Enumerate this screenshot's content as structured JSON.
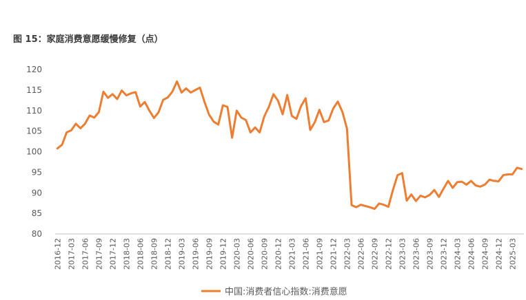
{
  "figure_title": "图 15：家庭消费意愿缓慢修复（点）",
  "chart_data": {
    "type": "line",
    "title": "",
    "xlabel": "",
    "ylabel": "",
    "ylim": [
      80,
      120
    ],
    "yticks": [
      80,
      85,
      90,
      95,
      100,
      105,
      110,
      115,
      120
    ],
    "grid": false,
    "legend_position": "bottom",
    "x_tick_labels": [
      "2016-12",
      "2017-03",
      "2017-06",
      "2017-09",
      "2017-12",
      "2018-03",
      "2018-06",
      "2018-09",
      "2018-12",
      "2019-03",
      "2019-06",
      "2019-09",
      "2019-12",
      "2020-03",
      "2020-06",
      "2020-09",
      "2020-12",
      "2021-03",
      "2021-06",
      "2021-09",
      "2021-12",
      "2022-03",
      "2022-06",
      "2022-09",
      "2022-12",
      "2023-03",
      "2023-06",
      "2023-09",
      "2023-12",
      "2024-03",
      "2024-06",
      "2024-09",
      "2024-12",
      "2025-03"
    ],
    "series": [
      {
        "name": "中国:消费者信心指数:消费意愿",
        "color": "#ED7D31",
        "start": "2016-12",
        "values": [
          100.8,
          101.7,
          104.7,
          105.2,
          106.8,
          105.7,
          106.8,
          108.8,
          108.3,
          109.6,
          114.6,
          113.1,
          114.0,
          112.8,
          114.9,
          113.7,
          114.2,
          114.5,
          111.0,
          112.1,
          110.0,
          108.2,
          109.6,
          112.6,
          113.2,
          114.6,
          117.1,
          114.4,
          115.4,
          114.4,
          115.0,
          115.6,
          112.1,
          109.0,
          107.3,
          106.6,
          111.3,
          110.9,
          103.4,
          110.0,
          108.3,
          107.7,
          104.7,
          105.9,
          104.7,
          108.6,
          110.9,
          114.0,
          112.4,
          109.1,
          113.8,
          108.7,
          108.0,
          111.1,
          113.0,
          105.3,
          107.2,
          110.2,
          107.2,
          107.6,
          110.5,
          112.2,
          109.7,
          105.6,
          87.0,
          86.5,
          87.1,
          86.8,
          86.5,
          86.1,
          87.4,
          87.1,
          86.6,
          90.7,
          94.3,
          94.8,
          88.1,
          89.6,
          88.0,
          89.3,
          88.9,
          89.5,
          90.7,
          89.0,
          91.0,
          92.9,
          91.2,
          92.6,
          92.7,
          92.0,
          92.9,
          91.8,
          91.5,
          92.0,
          93.2,
          92.9,
          92.8,
          94.3,
          94.5,
          94.5,
          96.1,
          95.8
        ]
      }
    ]
  }
}
